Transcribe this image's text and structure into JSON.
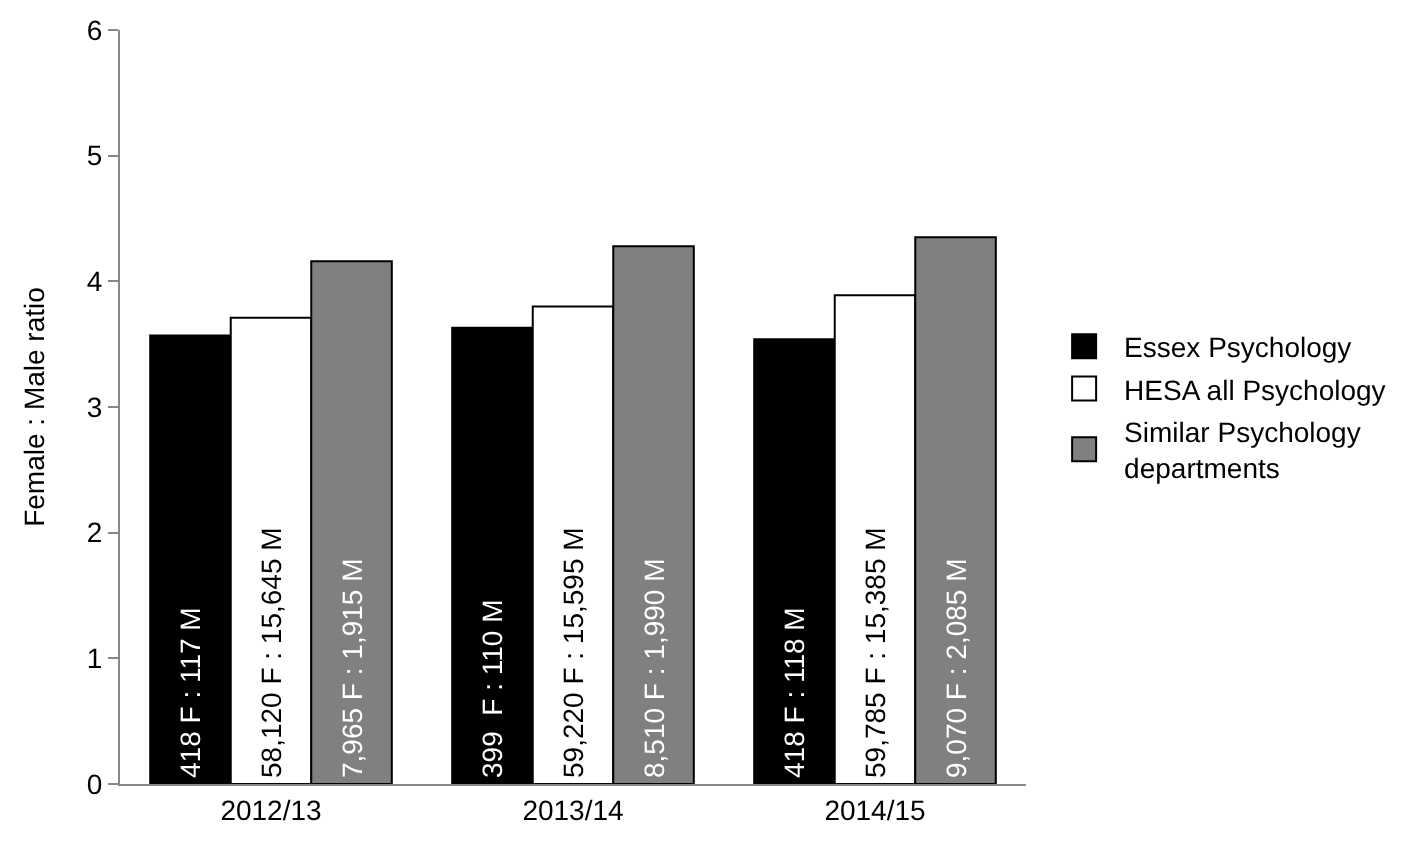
{
  "chart_data": {
    "type": "bar",
    "ylabel": "Female : Male ratio",
    "categories": [
      "2012/13",
      "2013/14",
      "2014/15"
    ],
    "series": [
      {
        "name": "Essex Psychology",
        "color": "#000000",
        "values": [
          3.57,
          3.63,
          3.54
        ]
      },
      {
        "name": "HESA all Psychology",
        "color": "#ffffff",
        "values": [
          3.71,
          3.8,
          3.89
        ]
      },
      {
        "name": "Similar Psychology departments",
        "color": "#808080",
        "values": [
          4.16,
          4.28,
          4.35
        ]
      }
    ],
    "annotations": [
      "418 F : 117 M",
      "58,120 F : 15,645 M",
      "7,965 F : 1,915 M",
      "399  F : 110 M",
      "59,220 F : 15,595 M",
      "8,510 F : 1,990 M",
      "418 F : 118 M",
      "59,785 F : 15,385 M",
      "9,070 F : 2,085 M"
    ],
    "ylim": [
      0,
      6
    ],
    "yticks": [
      0,
      1,
      2,
      3,
      4,
      5,
      6
    ],
    "grid": false,
    "legend": "right"
  }
}
